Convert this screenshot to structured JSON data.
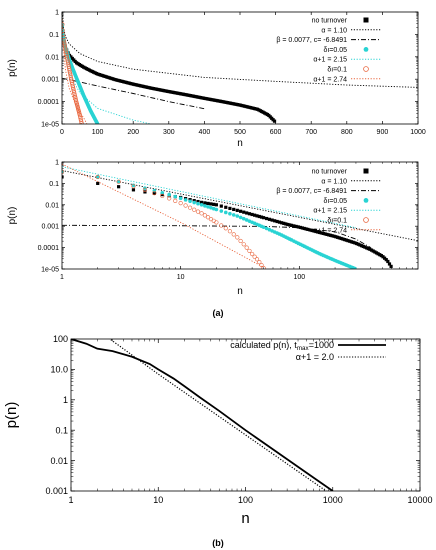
{
  "chart_data": [
    {
      "type": "scatter",
      "panel": "top",
      "xlabel": "n",
      "ylabel": "p(n)",
      "x_scale": "linear",
      "y_scale": "log",
      "xlim": [
        0,
        1000
      ],
      "ylim": [
        1e-05,
        1
      ],
      "x_ticks": [
        0,
        100,
        200,
        300,
        400,
        500,
        600,
        700,
        800,
        900,
        1000
      ],
      "x_tick_labels": [
        "0",
        "100",
        "200",
        "300",
        "400",
        "500",
        "600",
        "700",
        "800",
        "900",
        "1000"
      ],
      "y_ticks": [
        1e-05,
        0.0001,
        0.001,
        0.01,
        0.1,
        1
      ],
      "y_tick_labels": [
        "1e-05",
        "0.0001",
        "0.001",
        "0.01",
        "0.1",
        "1"
      ],
      "legend_position": "top-right",
      "legend": [
        {
          "label": "no turnover",
          "style": "square-marker",
          "color": "#000000"
        },
        {
          "label": "α = 1.10",
          "style": "dotted",
          "color": "#000000"
        },
        {
          "label": "β = 0.0077, c= -6.8491",
          "style": "dash-dot",
          "color": "#000000"
        },
        {
          "label": "δı=0.05",
          "style": "filled-circle-marker",
          "color": "#29d3d3"
        },
        {
          "label": "α+1 = 2.15",
          "style": "dotted",
          "color": "#29d3d3"
        },
        {
          "label": "δı=0.1",
          "style": "open-circle-marker",
          "color": "#e8643c"
        },
        {
          "label": "α+1 = 2.74",
          "style": "dotted",
          "color": "#e8643c"
        }
      ],
      "series": [
        {
          "name": "no turnover",
          "x": [
            1,
            2,
            5,
            10,
            20,
            40,
            60,
            80,
            100,
            150,
            200,
            250,
            300,
            350,
            400,
            450,
            500,
            550,
            580,
            600
          ],
          "y": [
            0.22,
            0.15,
            0.06,
            0.025,
            0.012,
            0.0055,
            0.0035,
            0.0024,
            0.0017,
            0.00095,
            0.0006,
            0.0004,
            0.00028,
            0.0002,
            0.00014,
            0.0001,
            7e-05,
            4.5e-05,
            2.5e-05,
            1.2e-05
          ]
        },
        {
          "name": "α = 1.10",
          "x": [
            1,
            2,
            5,
            10,
            20,
            50,
            100,
            200,
            400,
            600,
            800,
            1000
          ],
          "y": [
            0.95,
            0.45,
            0.17,
            0.08,
            0.038,
            0.014,
            0.0062,
            0.0028,
            0.0012,
            0.0008,
            0.00055,
            0.00043
          ]
        },
        {
          "name": "β = 0.0077, c= -6.8491",
          "x": [
            1,
            50,
            100,
            200,
            300,
            400
          ],
          "y": [
            0.0011,
            0.00075,
            0.0005,
            0.00023,
            0.0001,
            4.8e-05
          ]
        },
        {
          "name": "δı=0.05",
          "x": [
            1,
            2,
            3,
            5,
            8,
            10,
            15,
            20,
            30,
            40,
            50,
            60,
            70,
            80,
            90,
            100
          ],
          "y": [
            0.25,
            0.14,
            0.1,
            0.06,
            0.035,
            0.026,
            0.014,
            0.008,
            0.003,
            0.0012,
            0.0005,
            0.0002,
            9e-05,
            4e-05,
            2e-05,
            1e-05
          ]
        },
        {
          "name": "α+1 = 2.15",
          "x": [
            1,
            5,
            10,
            20,
            50,
            100,
            200,
            250
          ],
          "y": [
            0.5,
            0.04,
            0.008,
            0.0018,
            0.00025,
            5e-05,
            1.5e-05,
            1e-05
          ]
        },
        {
          "name": "δı=0.1",
          "x": [
            1,
            2,
            3,
            5,
            8,
            10,
            15,
            20,
            25,
            30,
            35,
            40,
            45,
            50,
            55
          ],
          "y": [
            0.28,
            0.15,
            0.1,
            0.055,
            0.03,
            0.02,
            0.008,
            0.003,
            0.0012,
            0.0005,
            0.00022,
            0.0001,
            5e-05,
            2.5e-05,
            1.1e-05
          ]
        },
        {
          "name": "α+1 = 2.74",
          "x": [
            1,
            2,
            5,
            10,
            20,
            40,
            60,
            70
          ],
          "y": [
            0.5,
            0.08,
            0.015,
            0.0025,
            0.0004,
            6e-05,
            2e-05,
            1e-05
          ]
        }
      ]
    },
    {
      "type": "scatter",
      "panel": "middle",
      "xlabel": "n",
      "ylabel": "p(n)",
      "x_scale": "log",
      "y_scale": "log",
      "xlim": [
        1,
        1000
      ],
      "ylim": [
        1e-05,
        1
      ],
      "x_ticks": [
        1,
        10,
        100
      ],
      "x_tick_labels": [
        "1",
        "10",
        "100"
      ],
      "y_ticks": [
        1e-05,
        0.0001,
        0.001,
        0.01,
        0.1,
        1
      ],
      "y_tick_labels": [
        "1e-05",
        "0.0001",
        "0.001",
        "0.01",
        "0.1",
        "1"
      ],
      "legend_position": "top-right",
      "legend": [
        {
          "label": "no turnover",
          "style": "square-marker",
          "color": "#000000"
        },
        {
          "label": "α = 1.10",
          "style": "dotted",
          "color": "#000000"
        },
        {
          "label": "β = 0.0077, c= -6.8491",
          "style": "dash-dot",
          "color": "#000000"
        },
        {
          "label": "δı=0.05",
          "style": "filled-circle-marker",
          "color": "#29d3d3"
        },
        {
          "label": "α+1 = 2.15",
          "style": "dotted",
          "color": "#29d3d3"
        },
        {
          "label": "δı=0.1",
          "style": "open-circle-marker",
          "color": "#e8643c"
        },
        {
          "label": "α+1 = 2.74",
          "style": "dotted",
          "color": "#e8643c"
        }
      ],
      "series": [
        {
          "name": "no turnover",
          "x": [
            1,
            2,
            3,
            4,
            5,
            7,
            10,
            15,
            20,
            30,
            50,
            80,
            100,
            150,
            200,
            300,
            400,
            500,
            550,
            600
          ],
          "y": [
            0.2,
            0.1,
            0.07,
            0.05,
            0.04,
            0.03,
            0.022,
            0.013,
            0.01,
            0.0055,
            0.0025,
            0.0012,
            0.0009,
            0.0005,
            0.00033,
            0.00016,
            8e-05,
            4e-05,
            2.5e-05,
            1.2e-05
          ]
        },
        {
          "name": "α = 1.10",
          "x": [
            1,
            10,
            100,
            1000
          ],
          "y": [
            0.4,
            0.032,
            0.0026,
            0.00021
          ]
        },
        {
          "name": "β = 0.0077, c= -6.8491",
          "x": [
            1,
            10,
            50,
            100,
            200,
            300,
            400
          ],
          "y": [
            0.0011,
            0.00105,
            0.00098,
            0.00085,
            0.00055,
            0.00025,
            0.0001
          ]
        },
        {
          "name": "δı=0.05",
          "x": [
            1,
            2,
            3,
            5,
            8,
            10,
            15,
            20,
            30,
            50,
            70,
            100,
            150,
            200,
            300
          ],
          "y": [
            0.35,
            0.2,
            0.12,
            0.06,
            0.03,
            0.02,
            0.01,
            0.006,
            0.003,
            0.0009,
            0.0004,
            0.00015,
            5e-05,
            2.5e-05,
            1e-05
          ]
        },
        {
          "name": "α+1 = 2.15",
          "x": [
            1,
            10,
            100,
            300
          ],
          "y": [
            0.6,
            0.042,
            0.003,
            0.00085
          ]
        },
        {
          "name": "δı=0.1",
          "x": [
            1,
            2,
            3,
            5,
            8,
            10,
            15,
            20,
            25,
            30,
            35,
            40,
            45,
            50
          ],
          "y": [
            0.35,
            0.2,
            0.12,
            0.05,
            0.02,
            0.012,
            0.004,
            0.0015,
            0.0007,
            0.0003,
            0.00012,
            5e-05,
            2.5e-05,
            1.1e-05
          ]
        },
        {
          "name": "α+1 = 2.74",
          "x": [
            1,
            10,
            50
          ],
          "y": [
            0.8,
            0.0015,
            1.2e-05
          ]
        }
      ]
    },
    {
      "type": "line",
      "panel": "bottom",
      "xlabel": "n",
      "ylabel": "p(n)",
      "x_scale": "log",
      "y_scale": "log",
      "xlim": [
        1,
        10000
      ],
      "ylim": [
        0.001,
        100
      ],
      "x_ticks": [
        1,
        10,
        100,
        1000,
        10000
      ],
      "x_tick_labels": [
        "1",
        "10",
        "100",
        "1000",
        "10000"
      ],
      "y_ticks": [
        0.001,
        0.01,
        0.1,
        1,
        10,
        100
      ],
      "y_tick_labels": [
        "0.001",
        "0.01",
        "0.1",
        "1",
        "10.0",
        "100"
      ],
      "legend_position": "top-right",
      "legend": [
        {
          "label": "calculated p(n), t",
          "sub": "max",
          "suffix": "=1000",
          "style": "solid"
        },
        {
          "label": "α+1 =  2.0",
          "style": "dotted"
        }
      ],
      "series": [
        {
          "name": "calculated p(n), tmax=1000",
          "x": [
            1,
            1.5,
            2,
            3,
            5,
            8,
            10,
            15,
            20,
            30,
            50,
            100,
            200,
            500,
            1000
          ],
          "y": [
            100,
            70,
            48,
            40,
            26,
            15,
            10,
            5,
            2.8,
            1.2,
            0.43,
            0.1,
            0.025,
            0.004,
            0.001
          ]
        },
        {
          "name": "α+1 =  2.0",
          "x": [
            2,
            10,
            100,
            1200
          ],
          "y": [
            200,
            7,
            0.07,
            0.00049
          ]
        }
      ]
    }
  ],
  "captions": {
    "a": "(a)",
    "b": "(b)"
  }
}
